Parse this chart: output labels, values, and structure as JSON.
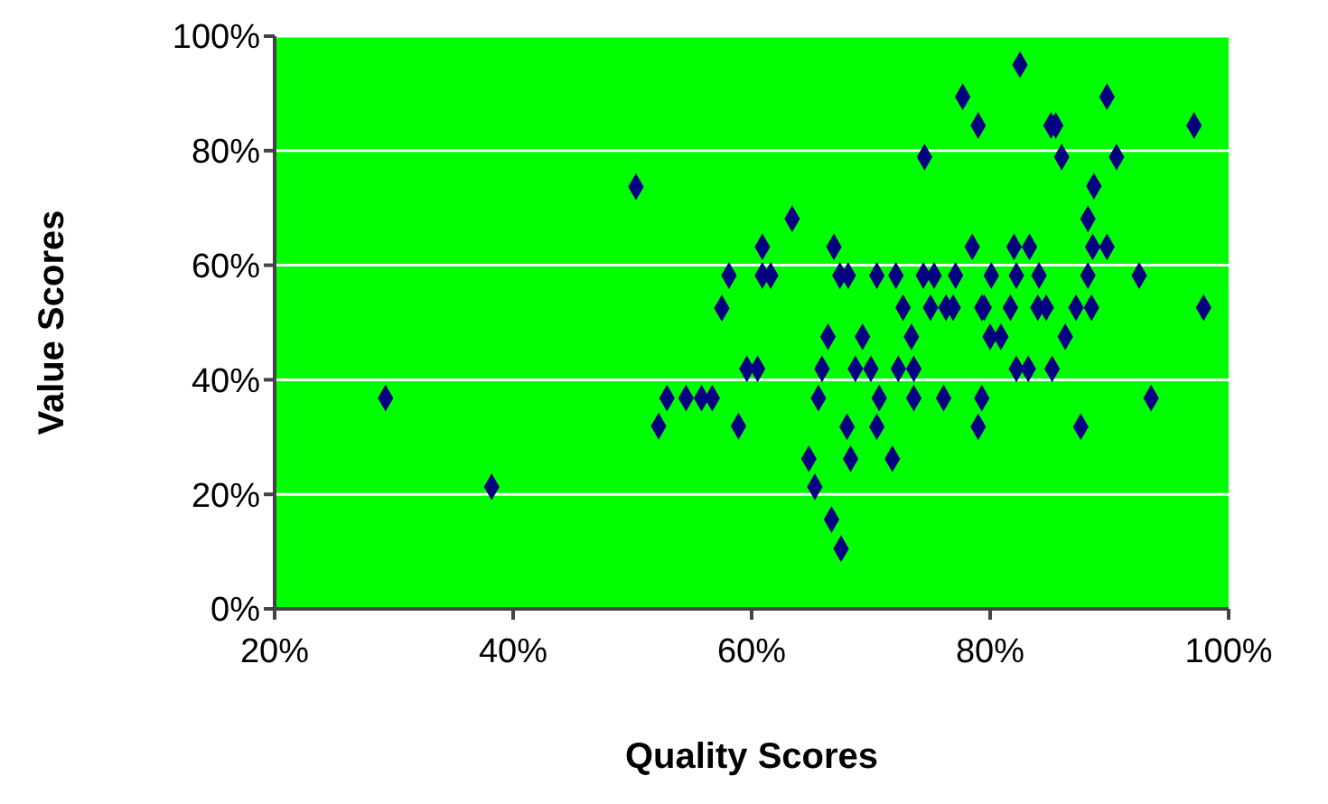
{
  "chart_data": {
    "type": "scatter",
    "xlabel": "Quality Scores",
    "ylabel": "Value Scores",
    "xlim": [
      20,
      100
    ],
    "ylim": [
      0,
      100
    ],
    "xticks": [
      {
        "value": 20,
        "label": "20%"
      },
      {
        "value": 40,
        "label": "40%"
      },
      {
        "value": 60,
        "label": "60%"
      },
      {
        "value": 80,
        "label": "80%"
      },
      {
        "value": 100,
        "label": "100%"
      }
    ],
    "yticks": [
      {
        "value": 0,
        "label": "0%"
      },
      {
        "value": 20,
        "label": "20%"
      },
      {
        "value": 40,
        "label": "40%"
      },
      {
        "value": 60,
        "label": "60%"
      },
      {
        "value": 80,
        "label": "80%"
      },
      {
        "value": 100,
        "label": "100%"
      }
    ],
    "grid": "y",
    "marker": "diamond",
    "legend": false,
    "series": [
      {
        "color": "#000080",
        "x": [
          29.3,
          38.2,
          50.3,
          58.1,
          57.5,
          52.9,
          54.5,
          55.8,
          56.7,
          52.2,
          58.9,
          59.6,
          60.5,
          60.9,
          82.5,
          77.7,
          89.8,
          79.0,
          85.1,
          85.5,
          97.1,
          74.5,
          86.0,
          90.6,
          88.7,
          88.2,
          63.4,
          66.9,
          78.5,
          82.0,
          83.3,
          88.6,
          89.8,
          60.9,
          61.6,
          67.4,
          68.1,
          70.5,
          72.1,
          74.4,
          75.3,
          77.1,
          80.1,
          82.2,
          84.1,
          88.2,
          92.5,
          72.7,
          75.0,
          76.3,
          76.9,
          79.3,
          79.5,
          81.7,
          84.0,
          84.7,
          87.2,
          88.5,
          97.9,
          66.4,
          69.3,
          73.4,
          80.0,
          80.9,
          86.3,
          65.9,
          68.7,
          70.0,
          72.3,
          73.6,
          82.2,
          83.2,
          85.2,
          65.6,
          70.7,
          73.6,
          76.1,
          79.3,
          93.5,
          68.0,
          70.5,
          79.0,
          87.6,
          64.8,
          68.3,
          71.8,
          65.3,
          66.7,
          67.5
        ],
        "values": [
          36.8,
          21.3,
          73.7,
          58.2,
          52.5,
          36.8,
          36.8,
          36.8,
          36.8,
          31.9,
          31.9,
          41.9,
          41.9,
          63.2,
          95.0,
          89.4,
          89.4,
          84.4,
          84.4,
          84.4,
          84.4,
          78.9,
          78.9,
          78.9,
          73.8,
          68.1,
          68.1,
          63.2,
          63.2,
          63.2,
          63.2,
          63.2,
          63.2,
          58.2,
          58.2,
          58.2,
          58.2,
          58.2,
          58.2,
          58.2,
          58.2,
          58.2,
          58.2,
          58.2,
          58.2,
          58.2,
          58.2,
          52.6,
          52.6,
          52.6,
          52.6,
          52.6,
          52.6,
          52.6,
          52.6,
          52.6,
          52.6,
          52.6,
          52.6,
          47.5,
          47.5,
          47.5,
          47.5,
          47.5,
          47.5,
          41.9,
          41.9,
          41.9,
          41.9,
          41.9,
          41.9,
          41.9,
          41.9,
          36.8,
          36.8,
          36.8,
          36.8,
          36.8,
          36.8,
          31.8,
          31.8,
          31.8,
          31.8,
          26.2,
          26.2,
          26.2,
          21.3,
          15.6,
          10.5
        ]
      }
    ]
  }
}
